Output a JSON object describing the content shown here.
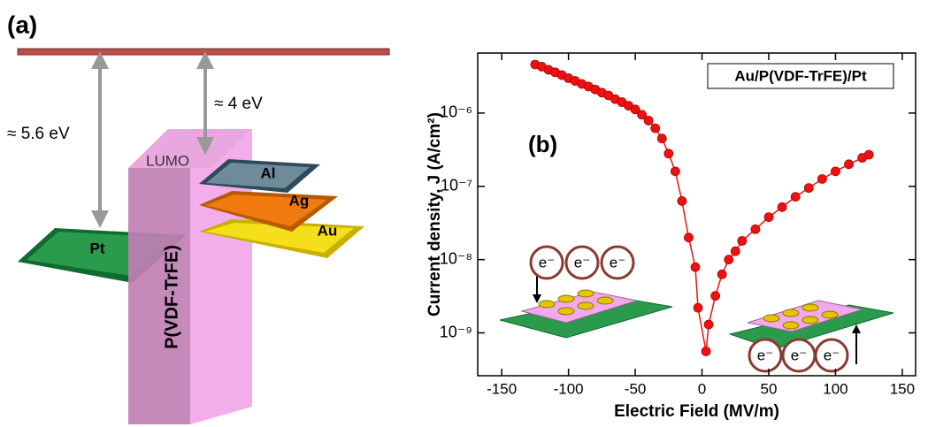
{
  "diagram": {
    "label": "(a)",
    "gaps": [
      "≈ 5.6 eV",
      "≈ 4 eV"
    ],
    "lumo": "LUMO",
    "polymer": "P(VDF-TrFE)",
    "metals": [
      "Pt",
      "Al",
      "Ag",
      "Au"
    ]
  },
  "chart_data": {
    "type": "scatter",
    "panel_label": "(b)",
    "x_label": "Electric Field (MV/m)",
    "y_label": "Current density, J (A/cm²)",
    "xlim": [
      -168,
      160
    ],
    "xticks": [
      -150,
      -100,
      -50,
      0,
      50,
      100,
      150
    ],
    "ylim": [
      2.6e-10,
      6.6e-06
    ],
    "log_y": true,
    "yticks": [
      {
        "value": 1e-09,
        "label": "10⁻⁹"
      },
      {
        "value": 1e-08,
        "label": "10⁻⁸"
      },
      {
        "value": 1e-07,
        "label": "10⁻⁷"
      },
      {
        "value": 1e-06,
        "label": "10⁻⁶"
      }
    ],
    "legend": "upper right",
    "annotations": [
      "e⁻",
      "e⁻",
      "e⁻",
      "e⁻",
      "e⁻",
      "e⁻"
    ],
    "series": [
      {
        "name": "Au/P(VDF-TrFE)/Pt",
        "color": "#ee1111",
        "x": [
          -125,
          -120,
          -115,
          -110,
          -105,
          -100,
          -95,
          -90,
          -85,
          -80,
          -75,
          -70,
          -65,
          -60,
          -55,
          -50,
          -45,
          -40,
          -35,
          -30,
          -25,
          -20,
          -15,
          -10,
          -5,
          -3,
          3,
          5,
          10,
          15,
          20,
          25,
          30,
          40,
          50,
          60,
          70,
          80,
          90,
          100,
          110,
          120,
          125
        ],
        "values": [
          4.6e-06,
          4.3e-06,
          3.9e-06,
          3.6e-06,
          3.3e-06,
          3e-06,
          2.75e-06,
          2.5e-06,
          2.3e-06,
          2.1e-06,
          1.9e-06,
          1.74e-06,
          1.55e-06,
          1.41e-06,
          1.26e-06,
          1.12e-06,
          9.5e-07,
          7.9e-07,
          6.2e-07,
          4.5e-07,
          2.8e-07,
          1.6e-07,
          6.3e-08,
          2e-08,
          7.9e-09,
          2.2e-09,
          5.6e-10,
          1.3e-09,
          3.2e-09,
          6.3e-09,
          1e-08,
          1.3e-08,
          1.8e-08,
          2.6e-08,
          3.8e-08,
          5.2e-08,
          7.2e-08,
          9.5e-08,
          1.26e-07,
          1.6e-07,
          2e-07,
          2.45e-07,
          2.7e-07
        ]
      }
    ]
  }
}
